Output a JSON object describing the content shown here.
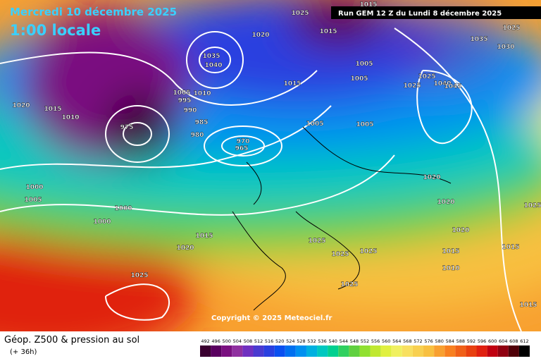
{
  "header": {
    "date": "Mercredi 10 décembre 2025",
    "time": "1:00 locale",
    "run": "Run GEM 12 Z du Lundi 8 décembre 2025"
  },
  "copyright": "Copyright © 2025 Meteociel.fr",
  "footer": {
    "title": "Géop. Z500 & pression au sol",
    "lead": "(+ 36h)"
  },
  "isobar_labels": [
    "1015",
    "1025",
    "1015",
    "1020",
    "1035",
    "1040",
    "1005",
    "1005",
    "1015",
    "1005",
    "1010",
    "995",
    "990",
    "985",
    "980",
    "1020",
    "1015",
    "1010",
    "1005",
    "1005",
    "975",
    "970",
    "965",
    "1035",
    "1025",
    "1030",
    "1025",
    "1025",
    "1040",
    "1045",
    "1020",
    "1020",
    "1000",
    "1005",
    "1000",
    "1000",
    "1015",
    "1020",
    "1025",
    "1025",
    "1025",
    "1020",
    "1015",
    "1010",
    "1015",
    "1025",
    "1025",
    "1015",
    "1025"
  ],
  "colorbar": {
    "values": [
      492,
      496,
      500,
      504,
      508,
      512,
      516,
      520,
      524,
      528,
      532,
      536,
      540,
      544,
      548,
      552,
      556,
      560,
      564,
      568,
      572,
      576,
      580,
      584,
      588,
      592,
      596,
      600,
      604,
      608,
      612
    ],
    "colors": [
      "#3a0030",
      "#5a0060",
      "#7a1080",
      "#9030a0",
      "#7030c0",
      "#4a3ad0",
      "#2a40e0",
      "#0a50f0",
      "#0070f0",
      "#0090f0",
      "#00b0e0",
      "#00c8c0",
      "#00d090",
      "#30d060",
      "#60d040",
      "#90e030",
      "#c0e830",
      "#e0f040",
      "#f0f060",
      "#f8e060",
      "#f8d050",
      "#f8c040",
      "#f8a030",
      "#f88020",
      "#f06018",
      "#e84010",
      "#e02010",
      "#c00010",
      "#900010",
      "#500008",
      "#000000"
    ]
  }
}
